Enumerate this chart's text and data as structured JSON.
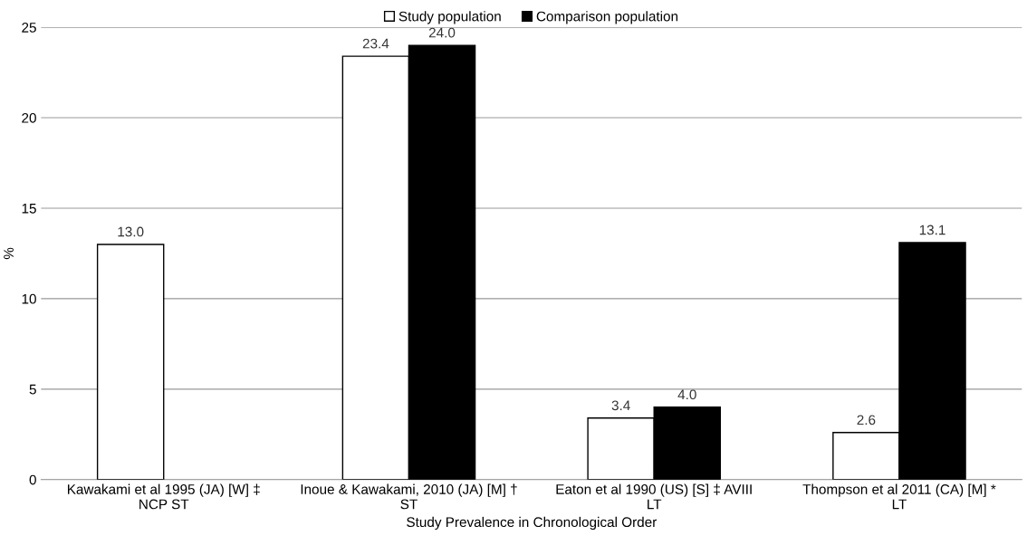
{
  "chart_data": {
    "type": "bar",
    "xlabel": "Study Prevalence in Chronological Order",
    "ylabel": "%",
    "categories": [
      "Kawakami et al 1995 (JA) [W] ‡\nNCP ST",
      "Inoue & Kawakami, 2010 (JA) [M] †\nST",
      "Eaton et al 1990 (US) [S] ‡ AVIII\nLT",
      "Thompson et al 2011 (CA) [M] *\nLT"
    ],
    "series": [
      {
        "name": "Study population",
        "color": "#ffffff",
        "values": [
          13.0,
          23.4,
          3.4,
          2.6
        ],
        "value_labels": [
          "13.0",
          "23.4",
          "3.4",
          "2.6"
        ]
      },
      {
        "name": "Comparison population",
        "color": "#000000",
        "values": [
          null,
          24.0,
          4.0,
          13.1
        ],
        "value_labels": [
          null,
          "24.0",
          "4.0",
          "13.1"
        ]
      }
    ],
    "ylim": [
      0,
      25
    ],
    "yticks": [
      0,
      5,
      10,
      15,
      20,
      25
    ],
    "grid": "y",
    "legend": "top"
  }
}
